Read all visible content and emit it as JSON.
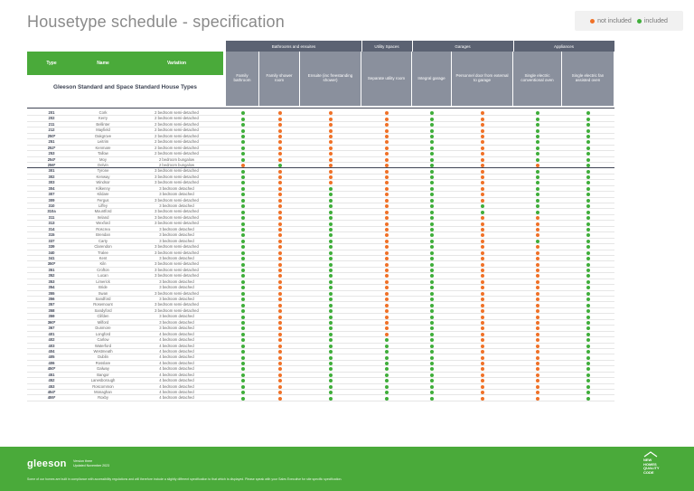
{
  "title": "Housetype schedule - specification",
  "legend": {
    "not_included": "not included",
    "included": "included"
  },
  "colors": {
    "not_included": "#f07127",
    "included": "#3fae3a"
  },
  "table_header": {
    "type": "Type",
    "name": "Name",
    "variation": "Variation"
  },
  "subtitle": "Gleeson Standard and Space Standard House Types",
  "groups": [
    {
      "label": "Bathrooms and ensuites"
    },
    {
      "label": "Utility Spaces"
    },
    {
      "label": "Garages"
    },
    {
      "label": "Appliances"
    }
  ],
  "columns": [
    "Family bathroom",
    "Family shower room",
    "Ensuite (inc freestanding shower)",
    "Separate utility room",
    "Integral garage",
    "Personnel door from external to garage",
    "Single electric conventional oven",
    "Single electric fan assisted oven"
  ],
  "rows": [
    {
      "type": "201",
      "name": "Cork",
      "variation": "2 bedroom semi-detached",
      "v": "10001011"
    },
    {
      "type": "202",
      "name": "Kerry",
      "variation": "2 bedroom semi-detached",
      "v": "10001011"
    },
    {
      "type": "211",
      "name": "Bellinter",
      "variation": "2 bedroom semi-detached",
      "v": "10001011"
    },
    {
      "type": "212",
      "name": "Mayfield",
      "variation": "2 bedroom semi-detached",
      "v": "10001011"
    },
    {
      "type": "250*",
      "name": "Oakgrove",
      "variation": "2 bedroom semi-detached",
      "v": "10001011"
    },
    {
      "type": "251",
      "name": "Leitrim",
      "variation": "2 bedroom semi-detached",
      "v": "10001011"
    },
    {
      "type": "252*",
      "name": "Kenmare",
      "variation": "2 bedroom semi-detached",
      "v": "10001011"
    },
    {
      "type": "253",
      "name": "Tallow",
      "variation": "2 bedroom semi-detached",
      "v": "10001011"
    },
    {
      "type": "254*",
      "name": "Moy",
      "variation": "2 bedroom bungalow",
      "v": "10001011"
    },
    {
      "type": "256*",
      "name": "Delvin",
      "variation": "2 bedroom bungalow",
      "v": "01001001",
      "sep": true
    },
    {
      "type": "301",
      "name": "Tyrone",
      "variation": "3 bedroom semi-detached",
      "v": "10001011"
    },
    {
      "type": "302",
      "name": "Kenway",
      "variation": "3 bedroom semi-detached",
      "v": "10001011"
    },
    {
      "type": "303",
      "name": "Windsor",
      "variation": "3 bedroom semi-detached",
      "v": "10001011"
    },
    {
      "type": "304",
      "name": "Kilkenny",
      "variation": "3 bedroom detached",
      "v": "10101011"
    },
    {
      "type": "307",
      "name": "Kildare",
      "variation": "3 bedroom detached",
      "v": "10101011"
    },
    {
      "type": "309",
      "name": "Fergus",
      "variation": "3 bedroom semi-detached",
      "v": "10101011"
    },
    {
      "type": "310",
      "name": "Liffey",
      "variation": "3 bedroom detached",
      "v": "10101111"
    },
    {
      "type": "310a",
      "name": "Mountford",
      "variation": "3 bedroom semi-detached",
      "v": "10101111"
    },
    {
      "type": "311",
      "name": "Ireland",
      "variation": "3 bedroom semi-detached",
      "v": "10101001"
    },
    {
      "type": "313",
      "name": "Wexford",
      "variation": "3 bedroom semi-detached",
      "v": "10101001"
    },
    {
      "type": "314",
      "name": "Roscrea",
      "variation": "3 bedroom detached",
      "v": "10101001"
    },
    {
      "type": "315",
      "name": "Brendan",
      "variation": "3 bedroom detached",
      "v": "10101001"
    },
    {
      "type": "337",
      "name": "Carty",
      "variation": "3 bedroom detached",
      "v": "10101011"
    },
    {
      "type": "339",
      "name": "Clarendon",
      "variation": "3 bedroom semi-detached",
      "v": "10101001"
    },
    {
      "type": "340",
      "name": "Tralee",
      "variation": "3 bedroom semi-detached",
      "v": "10101001"
    },
    {
      "type": "341",
      "name": "Kent",
      "variation": "3 bedroom detached",
      "v": "10101001"
    },
    {
      "type": "350*",
      "name": "Kiln",
      "variation": "3 bedroom semi-detached",
      "v": "10101001"
    },
    {
      "type": "351",
      "name": "Crofton",
      "variation": "3 bedroom semi-detached",
      "v": "10101001"
    },
    {
      "type": "352",
      "name": "Lucan",
      "variation": "3 bedroom semi-detached",
      "v": "10101001"
    },
    {
      "type": "353",
      "name": "Limerick",
      "variation": "3 bedroom detached",
      "v": "10101001"
    },
    {
      "type": "354",
      "name": "Bride",
      "variation": "3 bedroom detached",
      "v": "10101001"
    },
    {
      "type": "355",
      "name": "Swan",
      "variation": "3 bedroom semi-detached",
      "v": "10101001"
    },
    {
      "type": "356",
      "name": "Sandford",
      "variation": "3 bedroom detached",
      "v": "10101001"
    },
    {
      "type": "357",
      "name": "Rosemount",
      "variation": "3 bedroom semi-detached",
      "v": "10101001"
    },
    {
      "type": "358",
      "name": "Sandyford",
      "variation": "3 bedroom semi-detached",
      "v": "10101001"
    },
    {
      "type": "359",
      "name": "Clifden",
      "variation": "3 bedroom detached",
      "v": "10101001"
    },
    {
      "type": "360*",
      "name": "Milford",
      "variation": "3 bedroom detached",
      "v": "10101001"
    },
    {
      "type": "367",
      "name": "Dunmore",
      "variation": "3 bedroom detached",
      "v": "10101001"
    },
    {
      "type": "401",
      "name": "Longford",
      "variation": "4 bedroom detached",
      "v": "10101001"
    },
    {
      "type": "402",
      "name": "Carlow",
      "variation": "4 bedroom detached",
      "v": "10111001"
    },
    {
      "type": "403",
      "name": "Waterford",
      "variation": "4 bedroom detached",
      "v": "10111001"
    },
    {
      "type": "404",
      "name": "Westmeath",
      "variation": "4 bedroom detached",
      "v": "10111001"
    },
    {
      "type": "405",
      "name": "Dublin",
      "variation": "4 bedroom detached",
      "v": "10111001"
    },
    {
      "type": "406",
      "name": "Rosslare",
      "variation": "4 bedroom detached",
      "v": "10111001"
    },
    {
      "type": "450*",
      "name": "Galway",
      "variation": "4 bedroom detached",
      "v": "10111001"
    },
    {
      "type": "451",
      "name": "Bangor",
      "variation": "4 bedroom detached",
      "v": "10111001"
    },
    {
      "type": "452",
      "name": "Lanesborough",
      "variation": "4 bedroom detached",
      "v": "10111001"
    },
    {
      "type": "453",
      "name": "Roscommon",
      "variation": "4 bedroom detached",
      "v": "10111001"
    },
    {
      "type": "454*",
      "name": "Monaghan",
      "variation": "4 bedroom detached",
      "v": "10111001"
    },
    {
      "type": "455*",
      "name": "Roxby",
      "variation": "4 bedroom detached",
      "v": "10111001"
    }
  ],
  "footer": {
    "logo": "gleeson",
    "version_line1": "Version three",
    "version_line2": "Updated November 2023",
    "disclaimer": "Some of our homes are built in compliance with accessibility regulations and will therefore include a slightly different specification to that which is displayed. Please speak with your Sales Executive for site specific specification.",
    "badge": [
      "NEW",
      "HOMES",
      "QUALITY",
      "CODE"
    ]
  }
}
